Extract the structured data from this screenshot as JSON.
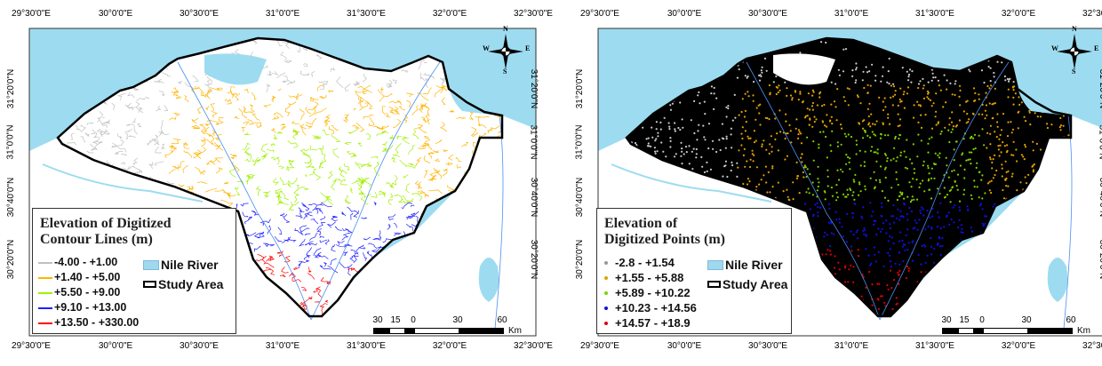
{
  "axes": {
    "top_bottom_ticks": [
      "29°30'0\"E",
      "30°0'0\"E",
      "30°30'0\"E",
      "31°0'0\"E",
      "31°30'0\"E",
      "32°0'0\"E",
      "32°30'0\"E"
    ],
    "side_ticks": [
      "31°20'0\"N",
      "31°0'0\"N",
      "30°40'0\"N",
      "30°20'0\"N"
    ]
  },
  "compass": {
    "n": "N",
    "s": "S",
    "e": "E",
    "w": "W"
  },
  "scale_bar": {
    "labels": [
      "30",
      "15",
      "0",
      "30",
      "60"
    ],
    "unit": "Km"
  },
  "colors": {
    "sea": "#9ddcf0",
    "land": "#ffffff",
    "boundary": "#000000"
  },
  "left_map": {
    "legend": {
      "title": "Elevation of Digitized\nContour Lines (m)",
      "classes": [
        {
          "label": "-4.00 - +1.00",
          "color": "#c0c0c0"
        },
        {
          "label": "+1.40 - +5.00",
          "color": "#ffb400"
        },
        {
          "label": "+5.50 - +9.00",
          "color": "#a0f000"
        },
        {
          "label": "+9.10 - +13.00",
          "color": "#2020ff"
        },
        {
          "label": "+13.50 - +330.00",
          "color": "#ff0000"
        }
      ],
      "nile_river": "Nile River",
      "study_area": "Study Area"
    }
  },
  "right_map": {
    "legend": {
      "title": "Elevation of\nDigitized Points (m)",
      "classes": [
        {
          "label": "-2.8 - +1.54",
          "color": "#c8c8c8"
        },
        {
          "label": "+1.55 - +5.88",
          "color": "#e0a000"
        },
        {
          "label": "+5.89 - +10.22",
          "color": "#80d000"
        },
        {
          "label": "+10.23 - +14.56",
          "color": "#1010e0"
        },
        {
          "label": "+14.57 - +18.9",
          "color": "#e00000"
        }
      ],
      "nile_river": "Nile River",
      "study_area": "Study Area"
    }
  }
}
